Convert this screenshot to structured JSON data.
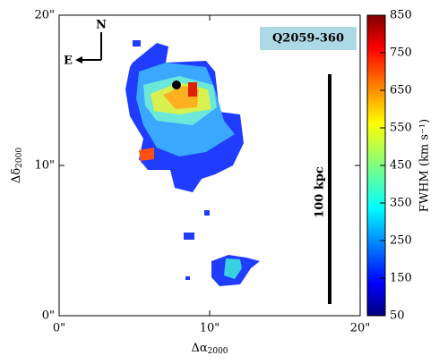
{
  "chart_data": {
    "type": "heatmap",
    "xlabel": {
      "symbol": "Δα",
      "subscript": "2000"
    },
    "ylabel": {
      "symbol": "Δδ",
      "subscript": "2000"
    },
    "xlim": [
      0,
      20
    ],
    "ylim": [
      0,
      20
    ],
    "xticks": [
      {
        "value": 0,
        "label": "0\""
      },
      {
        "value": 10,
        "label": "10\""
      },
      {
        "value": 20,
        "label": "20\""
      }
    ],
    "yticks": [
      {
        "value": 0,
        "label": "0\""
      },
      {
        "value": 10,
        "label": "10\""
      },
      {
        "value": 20,
        "label": "20\""
      }
    ],
    "colorbar": {
      "lim": [
        50,
        850
      ],
      "ticks": [
        50,
        150,
        250,
        350,
        450,
        550,
        650,
        750,
        850
      ],
      "label": "FWHM (km s⁻¹)",
      "colormap": "jet"
    },
    "annotation": "Q2059-360",
    "scale_label": "100 kpc",
    "compass": {
      "north": "N",
      "east": "E"
    }
  }
}
